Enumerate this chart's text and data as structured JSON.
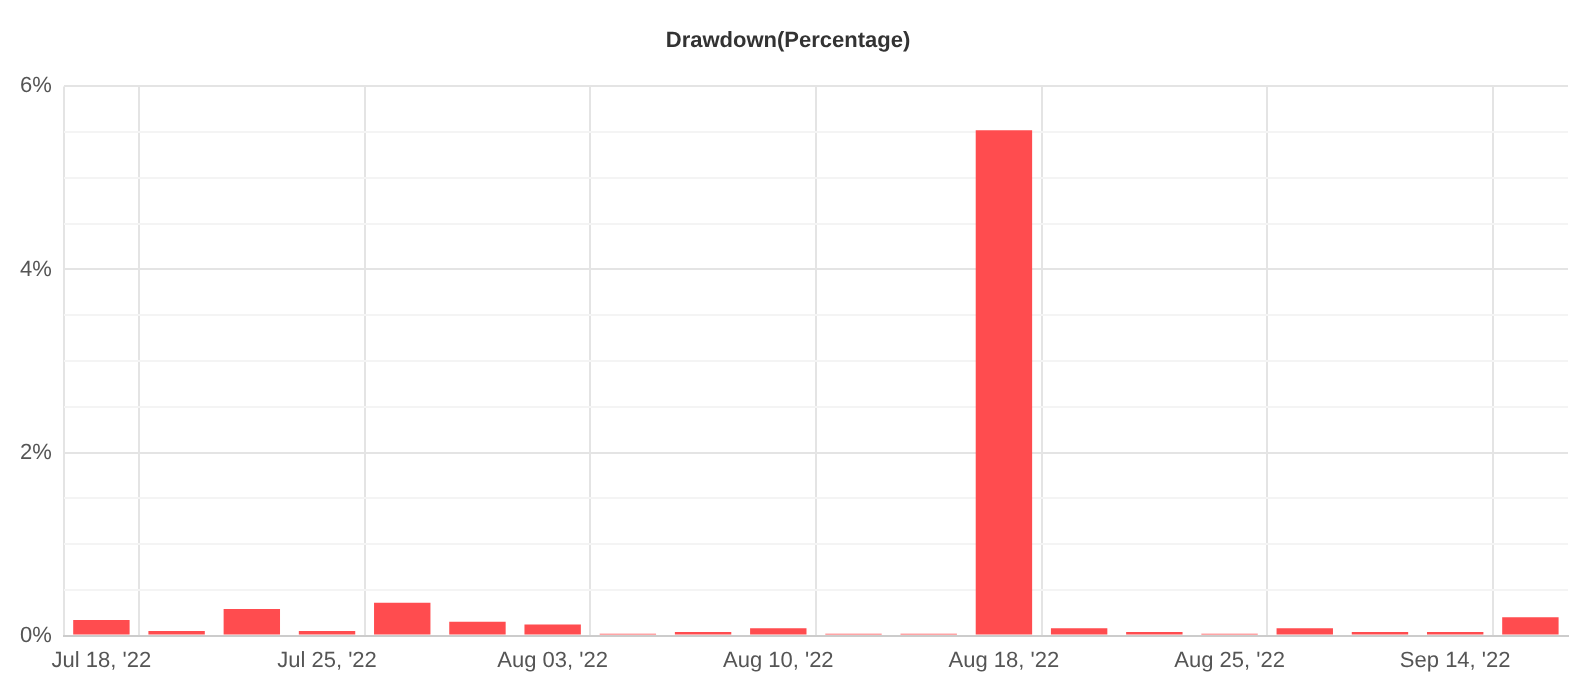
{
  "chart_data": {
    "type": "bar",
    "title": "Drawdown(Percentage)",
    "categories": [
      "Jul 18, '22",
      null,
      null,
      "Jul 25, '22",
      null,
      null,
      "Aug 03, '22",
      null,
      null,
      "Aug 10, '22",
      null,
      null,
      "Aug 18, '22",
      null,
      null,
      "Aug 25, '22",
      null,
      null,
      "Sep 14, '22",
      null
    ],
    "values": [
      0.17,
      0.05,
      0.29,
      0.05,
      0.36,
      0.15,
      0.12,
      0.02,
      0.04,
      0.08,
      0.02,
      0.02,
      5.52,
      0.08,
      0.04,
      0.02,
      0.08,
      0.04,
      0.04,
      0.2
    ],
    "color": "#ff4c4f",
    "ylim": [
      0,
      6
    ],
    "yticks": [
      {
        "value": 0,
        "label": "0%"
      },
      {
        "value": 0.5,
        "label": null
      },
      {
        "value": 1,
        "label": null
      },
      {
        "value": 1.5,
        "label": null
      },
      {
        "value": 2,
        "label": "2%"
      },
      {
        "value": 2.5,
        "label": null
      },
      {
        "value": 3,
        "label": null
      },
      {
        "value": 3.5,
        "label": null
      },
      {
        "value": 4,
        "label": "4%"
      },
      {
        "value": 4.5,
        "label": null
      },
      {
        "value": 5,
        "label": null
      },
      {
        "value": 5.5,
        "label": null
      },
      {
        "value": 6,
        "label": "6%"
      }
    ],
    "grid": true,
    "legend": false
  }
}
